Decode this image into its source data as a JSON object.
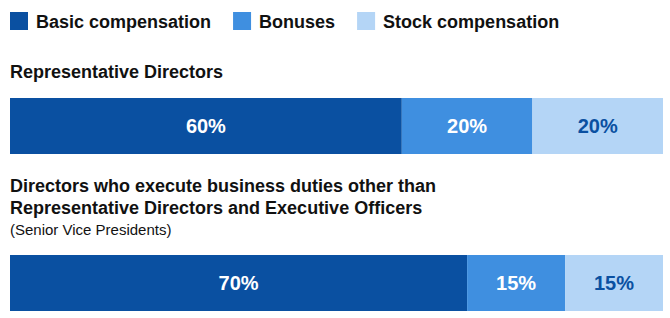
{
  "chart_data": {
    "type": "bar",
    "orientation": "horizontal",
    "stacked": true,
    "data_labels": true,
    "legend": "top",
    "tick_labels": false,
    "categories": [
      "Representative Directors",
      "Directors who execute business duties other than\nRepresentative Directors and Executive Officers\n(Senior Vice Presidents)"
    ],
    "xlim": [
      0,
      100
    ],
    "series": [
      {
        "name": "Basic compensation",
        "color": "#0a50a1",
        "values": [
          60,
          70
        ],
        "value_labels": [
          "60%",
          "70%"
        ]
      },
      {
        "name": "Bonuses",
        "color": "#3f8fe0",
        "values": [
          20,
          15
        ],
        "value_labels": [
          "20%",
          "15%"
        ]
      },
      {
        "name": "Stock compensation",
        "color": "#b4d5f6",
        "values": [
          20,
          15
        ],
        "value_labels": [
          "20%",
          "15%"
        ]
      }
    ]
  }
}
